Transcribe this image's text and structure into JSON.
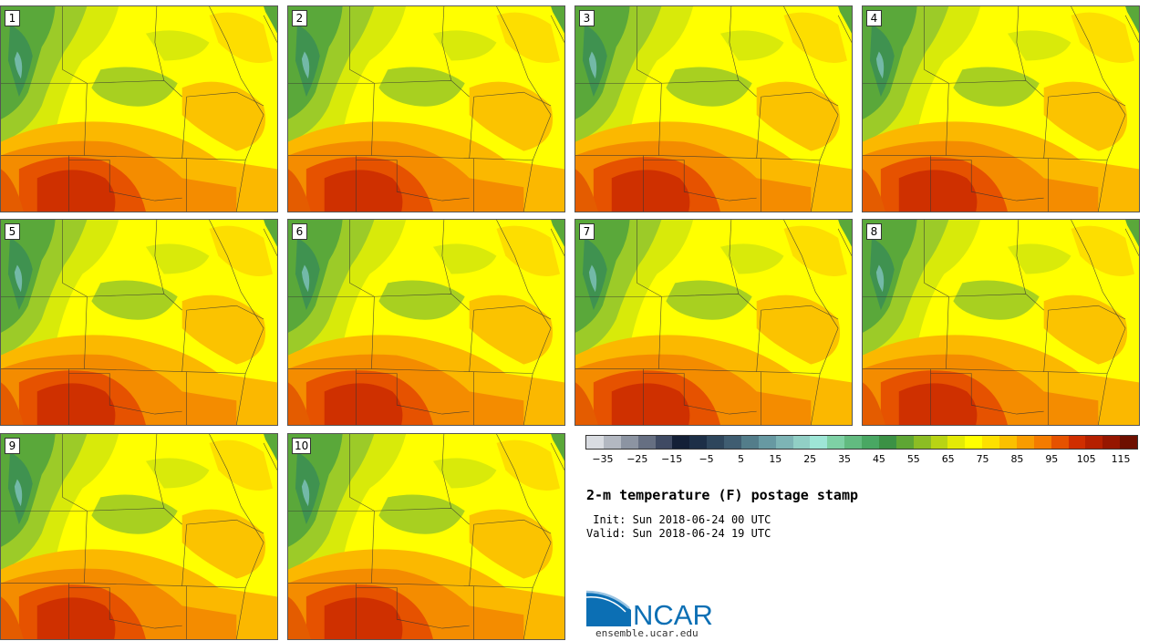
{
  "stamps": [
    {
      "label": "1"
    },
    {
      "label": "2"
    },
    {
      "label": "3"
    },
    {
      "label": "4"
    },
    {
      "label": "5"
    },
    {
      "label": "6"
    },
    {
      "label": "7"
    },
    {
      "label": "8"
    },
    {
      "label": "9"
    },
    {
      "label": "10"
    }
  ],
  "colorbar": {
    "tick_labels": [
      "−35",
      "−25",
      "−15",
      "−5",
      "5",
      "15",
      "25",
      "35",
      "45",
      "55",
      "65",
      "75",
      "85",
      "95",
      "105",
      "115"
    ],
    "range": [
      -40,
      120
    ],
    "step": 5,
    "colors": [
      "#d9dce1",
      "#b3b8c1",
      "#8c94a2",
      "#666f82",
      "#3f4a63",
      "#142037",
      "#1d2f47",
      "#2e465c",
      "#3f5d71",
      "#537d8a",
      "#6799a2",
      "#7db4b5",
      "#91cfc5",
      "#9ee6d6",
      "#7ed1a5",
      "#62bb80",
      "#49a763",
      "#3b9145",
      "#5ea634",
      "#8cbd24",
      "#b8d414",
      "#e3ea06",
      "#ffff00",
      "#fde000",
      "#fbc000",
      "#f89c00",
      "#f47b00",
      "#e65200",
      "#d02e00",
      "#b52000",
      "#961600",
      "#6e0f00"
    ]
  },
  "product_title": "2-m temperature (F) postage stamp",
  "init_text": " Init: Sun 2018-06-24 00 UTC",
  "valid_text": "Valid: Sun 2018-06-24 19 UTC",
  "logo": {
    "text": "NCAR",
    "brand_color": "#0c6fb4"
  },
  "website": "ensemble.ucar.edu"
}
